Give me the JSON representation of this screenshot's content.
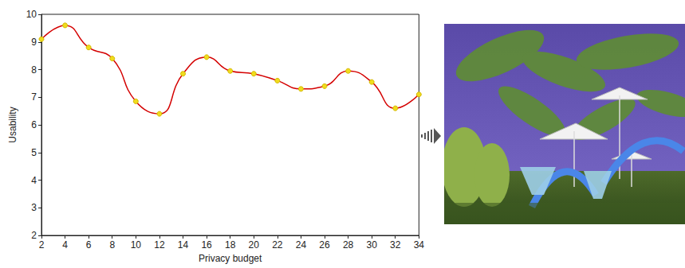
{
  "chart_data": {
    "type": "line",
    "x_label": "Privacy budget",
    "y_label": "Usability",
    "x": [
      2,
      4,
      6,
      8,
      10,
      12,
      14,
      16,
      18,
      20,
      22,
      24,
      26,
      28,
      30,
      32,
      34
    ],
    "values": [
      9.1,
      9.6,
      8.8,
      8.4,
      6.85,
      6.4,
      7.85,
      8.45,
      7.95,
      7.85,
      7.6,
      7.3,
      7.4,
      7.95,
      7.55,
      6.6,
      7.1
    ],
    "color": "#d40000",
    "marker": "circle",
    "line_style": "solid",
    "xlim": [
      2,
      34
    ],
    "xticks": [
      2,
      4,
      6,
      8,
      10,
      12,
      14,
      16,
      18,
      20,
      22,
      24,
      26,
      28,
      30,
      32,
      34
    ],
    "ylim": [
      2,
      10
    ],
    "yticks": [
      2,
      3,
      4,
      5,
      6,
      7,
      8,
      9,
      10
    ],
    "grid": false
  }
}
